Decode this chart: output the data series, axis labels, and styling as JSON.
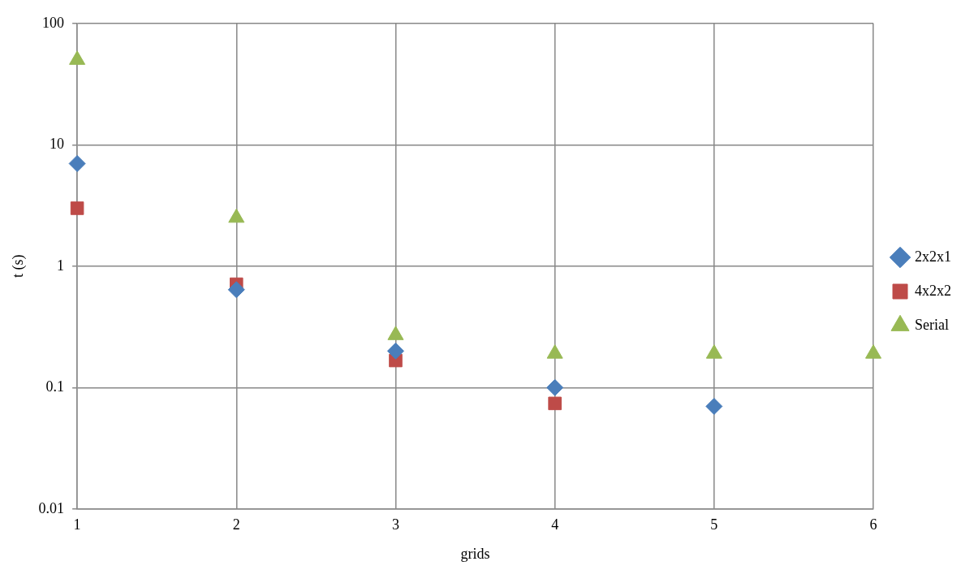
{
  "chart_data": {
    "type": "scatter",
    "xlabel": "grids",
    "ylabel": "t (s)",
    "x": [
      1,
      2,
      3,
      4,
      5,
      6
    ],
    "xlim": [
      1,
      6
    ],
    "xticks": [
      1,
      2,
      3,
      4,
      5,
      6
    ],
    "ylim": [
      0.01,
      100
    ],
    "yticks": [
      0.01,
      0.1,
      1,
      10,
      100
    ],
    "log": "y",
    "grid": true,
    "legend": "right",
    "series": [
      {
        "name": "2x2x1",
        "color": "#4a7ebb",
        "marker": "diamond",
        "values": [
          7,
          0.64,
          0.2,
          0.1,
          0.07,
          null
        ]
      },
      {
        "name": "4x2x2",
        "color": "#be4b48",
        "marker": "square",
        "values": [
          3,
          0.71,
          0.167,
          0.074,
          null,
          null
        ]
      },
      {
        "name": "Serial",
        "color": "#98b954",
        "marker": "triangle",
        "values": [
          50,
          2.5,
          0.27,
          0.19,
          0.19,
          0.19
        ]
      }
    ]
  }
}
